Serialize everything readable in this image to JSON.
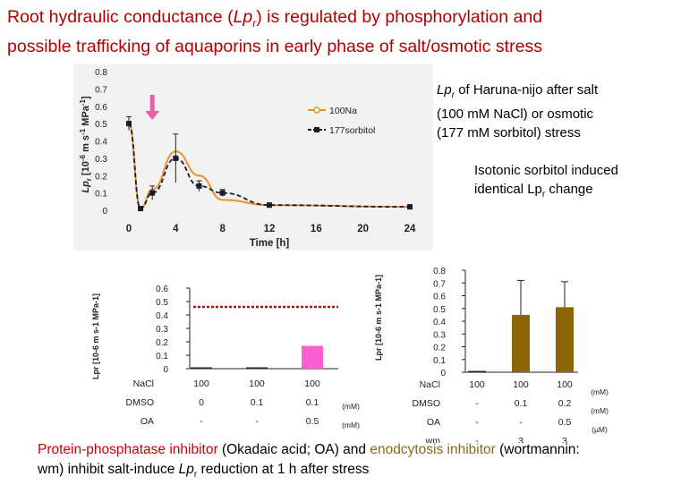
{
  "title": {
    "line1_a": "Root hydraulic conductance (",
    "line1_lp": "Lp",
    "line1_sub": "r",
    "line1_b": ") is regulated by phosphorylation and",
    "line2": "possible trafficking of aquaporins in early phase of salt/osmotic stress"
  },
  "notes": {
    "n1_a": "Lp",
    "n1_sub": "r",
    "n1_b": " of Haruna-nijo after salt",
    "n1_line2": "(100 mM NaCl)  or osmotic",
    "n1_line3": "(177 mM sorbitol) stress",
    "n2_line1": "Isotonic sorbitol induced",
    "n2_a": "identical Lp",
    "n2_sub": "r",
    "n2_b": " change"
  },
  "bottom": {
    "red1": "Protein-phosphatase inhibitor",
    "t1": " (Okadaic acid; OA) and ",
    "brown1": "enodcytosis inhibitor",
    "t2": " (wortmannin:",
    "t3": "wm) inhibit salt-induce ",
    "lp": "Lp",
    "lp_sub": "r",
    "t4": " reduction at 1 h after stress"
  },
  "colors": {
    "title": "#b30000",
    "nacl_line": "#e8962c",
    "sorbitol_line": "#1a1a2e",
    "pink_bar": "#ff5fcf",
    "arrow": "#e85fa8",
    "brown_bar": "#8b6508",
    "dotted_red": "#cc0000"
  },
  "chart_data": [
    {
      "type": "line",
      "title": "",
      "xlabel": "Time [h]",
      "ylabel": "Lpr [10-6 m s-1 MPa-1]",
      "ylabel_parts": {
        "a": "Lp",
        "sub": "r",
        "b": "  [10",
        "sup1": "-6",
        "c": " m s",
        "sup2": "-1",
        "d": " MPa",
        "sup3": "-1",
        "e": "]"
      },
      "xlim": [
        0,
        24
      ],
      "ylim": [
        0,
        0.8
      ],
      "xticks": [
        0,
        4,
        8,
        12,
        16,
        20,
        24
      ],
      "yticks": [
        0,
        0.1,
        0.2,
        0.3,
        0.4,
        0.5,
        0.6,
        0.7,
        0.8
      ],
      "ytick_labels": [
        "0",
        "0.1",
        "0.2",
        "0.3",
        "0.4",
        "0.5",
        "0.6",
        "0.7",
        "0.8"
      ],
      "legend_position": "right",
      "marker_time_h": 2,
      "series": [
        {
          "name": "100Na",
          "color": "#e8962c",
          "x": [
            0,
            1,
            2,
            4,
            6,
            8,
            12,
            24
          ],
          "y": [
            0.5,
            0.01,
            0.12,
            0.34,
            0.2,
            0.06,
            0.03,
            0.02
          ]
        },
        {
          "name": "177sorbitol",
          "color": "#1a1a2e",
          "x": [
            0,
            1,
            2,
            4,
            6,
            8,
            12,
            24
          ],
          "y": [
            0.5,
            0.01,
            0.1,
            0.3,
            0.14,
            0.1,
            0.03,
            0.02
          ],
          "error": [
            0.04,
            0.01,
            0.04,
            0.14,
            0.03,
            0.02,
            0.01,
            0.01
          ]
        }
      ]
    },
    {
      "type": "bar",
      "ylabel": "Lpr [10-6 m s-1 MPa-1]",
      "ylim": [
        0,
        0.6
      ],
      "yticks": [
        0,
        0.1,
        0.2,
        0.3,
        0.4,
        0.5,
        0.6
      ],
      "ytick_labels": [
        "0",
        "0.1",
        "0.2",
        "0.3",
        "0.4",
        "0.5",
        "0.6"
      ],
      "reference_line": 0.46,
      "values": [
        0.005,
        0.01,
        0.17
      ],
      "bar_colors": [
        "#222222",
        "#222222",
        "#ff5fcf"
      ],
      "table": {
        "rows": [
          {
            "label": "NaCl",
            "values": [
              "100",
              "100",
              "100"
            ],
            "unit": ""
          },
          {
            "label": "DMSO",
            "values": [
              "0",
              "0.1",
              "0.1"
            ],
            "unit": "(mM)"
          },
          {
            "label": "OA",
            "values": [
              "-",
              "-",
              "0.5"
            ],
            "unit": "(mM)"
          }
        ],
        "unit_last": "(µM)"
      }
    },
    {
      "type": "bar",
      "ylabel": "Lpr [10-6 m s-1 MPa-1]",
      "ylim": [
        0,
        0.8
      ],
      "yticks": [
        0,
        0.1,
        0.2,
        0.3,
        0.4,
        0.5,
        0.6,
        0.7,
        0.8
      ],
      "ytick_labels": [
        "0",
        "0.1",
        "0.2",
        "0.3",
        "0.4",
        "0.5",
        "0.6",
        "0.7",
        "0.8"
      ],
      "values": [
        0.005,
        0.45,
        0.51
      ],
      "errors": [
        0.0,
        0.27,
        0.2
      ],
      "bar_colors": [
        "#222222",
        "#8b6508",
        "#8b6508"
      ],
      "table": {
        "rows": [
          {
            "label": "NaCl",
            "values": [
              "100",
              "100",
              "100"
            ],
            "unit": "(mM)"
          },
          {
            "label": "DMSO",
            "values": [
              "-",
              "0.1",
              "0.2"
            ],
            "unit": "(mM)"
          },
          {
            "label": "OA",
            "values": [
              "-",
              "-",
              "0.5"
            ],
            "unit": "(µM)"
          },
          {
            "label": "wm",
            "values": [
              "-",
              "3",
              "3"
            ],
            "unit": "(µM)"
          }
        ]
      }
    }
  ]
}
